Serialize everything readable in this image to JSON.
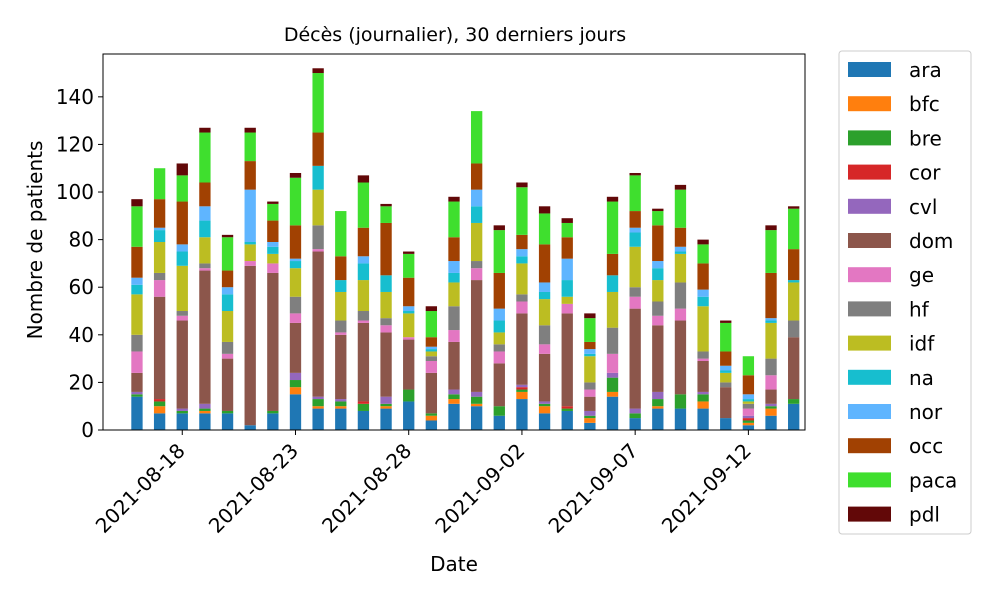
{
  "chart_data": {
    "type": "bar",
    "stacked": true,
    "title": "Décès (journalier), 30 derniers jours",
    "xlabel": "Date",
    "ylabel": "Nombre de patients",
    "ylim": [
      0,
      158
    ],
    "yticks": [
      0,
      20,
      40,
      60,
      80,
      100,
      120,
      140
    ],
    "xlim_days": [
      -1.5,
      29.5
    ],
    "categories": [
      "2021-08-16",
      "2021-08-17",
      "2021-08-18",
      "2021-08-19",
      "2021-08-20",
      "2021-08-21",
      "2021-08-22",
      "2021-08-23",
      "2021-08-24",
      "2021-08-25",
      "2021-08-26",
      "2021-08-27",
      "2021-08-28",
      "2021-08-29",
      "2021-08-30",
      "2021-08-31",
      "2021-09-01",
      "2021-09-02",
      "2021-09-03",
      "2021-09-04",
      "2021-09-05",
      "2021-09-06",
      "2021-09-07",
      "2021-09-08",
      "2021-09-09",
      "2021-09-10",
      "2021-09-11",
      "2021-09-12",
      "2021-09-13",
      "2021-09-14"
    ],
    "xtick_labels": [
      {
        "label": "2021-08-18",
        "index": 2
      },
      {
        "label": "2021-08-23",
        "index": 7
      },
      {
        "label": "2021-08-28",
        "index": 12
      },
      {
        "label": "2021-09-02",
        "index": 17
      },
      {
        "label": "2021-09-07",
        "index": 22
      },
      {
        "label": "2021-09-12",
        "index": 27
      }
    ],
    "legend_position": "outside-right",
    "series": [
      {
        "name": "ara",
        "color": "#1f77b4",
        "values": [
          14,
          7,
          7,
          7,
          7,
          2,
          7,
          15,
          9,
          9,
          8,
          9,
          12,
          4,
          11,
          10,
          6,
          13,
          7,
          8,
          3,
          14,
          5,
          9,
          9,
          9,
          5,
          2,
          6,
          11
        ]
      },
      {
        "name": "bfc",
        "color": "#ff7f0e",
        "values": [
          0,
          3,
          0,
          1,
          0,
          0,
          0,
          3,
          1,
          1,
          0,
          1,
          0,
          2,
          2,
          1,
          0,
          3,
          3,
          0,
          2,
          2,
          0,
          1,
          0,
          3,
          0,
          1,
          3,
          0
        ]
      },
      {
        "name": "bre",
        "color": "#2ca02c",
        "values": [
          1,
          2,
          1,
          1,
          1,
          0,
          1,
          3,
          3,
          2,
          3,
          1,
          5,
          1,
          2,
          3,
          4,
          1,
          1,
          1,
          1,
          6,
          2,
          3,
          6,
          3,
          0,
          1,
          1,
          2
        ]
      },
      {
        "name": "cor",
        "color": "#d62728",
        "values": [
          0,
          1,
          0,
          0,
          0,
          0,
          0,
          0,
          0,
          0,
          1,
          0,
          0,
          0,
          0,
          0,
          0,
          1,
          0,
          1,
          0,
          0,
          0,
          0,
          0,
          0,
          0,
          1,
          0,
          0
        ]
      },
      {
        "name": "cvl",
        "color": "#9467bd",
        "values": [
          1,
          0,
          1,
          2,
          0,
          0,
          0,
          3,
          1,
          1,
          0,
          3,
          0,
          0,
          2,
          2,
          0,
          1,
          1,
          0,
          2,
          2,
          2,
          3,
          0,
          1,
          0,
          1,
          1,
          0
        ]
      },
      {
        "name": "dom",
        "color": "#8c564b",
        "values": [
          8,
          43,
          37,
          56,
          22,
          67,
          58,
          21,
          61,
          27,
          33,
          27,
          21,
          17,
          20,
          47,
          18,
          30,
          20,
          39,
          6,
          0,
          42,
          28,
          31,
          13,
          13,
          0,
          6,
          26
        ]
      },
      {
        "name": "ge",
        "color": "#e377c2",
        "values": [
          9,
          7,
          2,
          1,
          2,
          2,
          4,
          4,
          1,
          1,
          1,
          3,
          1,
          5,
          5,
          5,
          5,
          5,
          4,
          4,
          3,
          8,
          5,
          4,
          5,
          1,
          0,
          3,
          6,
          0
        ]
      },
      {
        "name": "hf",
        "color": "#7f7f7f",
        "values": [
          7,
          3,
          2,
          2,
          5,
          0,
          0,
          7,
          10,
          5,
          4,
          3,
          0,
          2,
          10,
          3,
          3,
          3,
          8,
          0,
          3,
          11,
          4,
          6,
          11,
          3,
          2,
          2,
          7,
          7
        ]
      },
      {
        "name": "idf",
        "color": "#bcbd22",
        "values": [
          17,
          13,
          19,
          11,
          13,
          7,
          4,
          12,
          15,
          12,
          13,
          11,
          10,
          2,
          10,
          16,
          5,
          13,
          11,
          3,
          11,
          15,
          17,
          9,
          12,
          19,
          4,
          1,
          15,
          16
        ]
      },
      {
        "name": "na",
        "color": "#17becf",
        "values": [
          4,
          5,
          6,
          7,
          7,
          1,
          3,
          3,
          10,
          5,
          7,
          7,
          1,
          1,
          4,
          7,
          5,
          3,
          3,
          7,
          1,
          7,
          6,
          5,
          1,
          4,
          1,
          1,
          1,
          1
        ]
      },
      {
        "name": "nor",
        "color": "#5fb5ff",
        "values": [
          3,
          1,
          3,
          6,
          3,
          22,
          2,
          1,
          0,
          0,
          3,
          0,
          2,
          1,
          5,
          7,
          5,
          3,
          4,
          9,
          2,
          0,
          2,
          3,
          2,
          3,
          2,
          2,
          1,
          0
        ]
      },
      {
        "name": "occ",
        "color": "#a14102",
        "values": [
          13,
          12,
          18,
          10,
          7,
          12,
          9,
          14,
          14,
          10,
          12,
          22,
          12,
          4,
          10,
          11,
          15,
          6,
          16,
          9,
          3,
          9,
          7,
          15,
          8,
          11,
          6,
          8,
          19,
          13
        ]
      },
      {
        "name": "paca",
        "color": "#3fdf2e",
        "values": [
          17,
          13,
          11,
          21,
          14,
          12,
          7,
          20,
          25,
          19,
          19,
          7,
          10,
          11,
          15,
          22,
          18,
          20,
          13,
          6,
          10,
          22,
          15,
          6,
          16,
          8,
          12,
          8,
          18,
          17
        ]
      },
      {
        "name": "pdl",
        "color": "#620808",
        "values": [
          3,
          0,
          5,
          2,
          1,
          2,
          1,
          2,
          2,
          0,
          3,
          1,
          1,
          2,
          2,
          0,
          2,
          2,
          3,
          2,
          2,
          2,
          1,
          1,
          2,
          2,
          1,
          0,
          2,
          1
        ]
      }
    ]
  }
}
